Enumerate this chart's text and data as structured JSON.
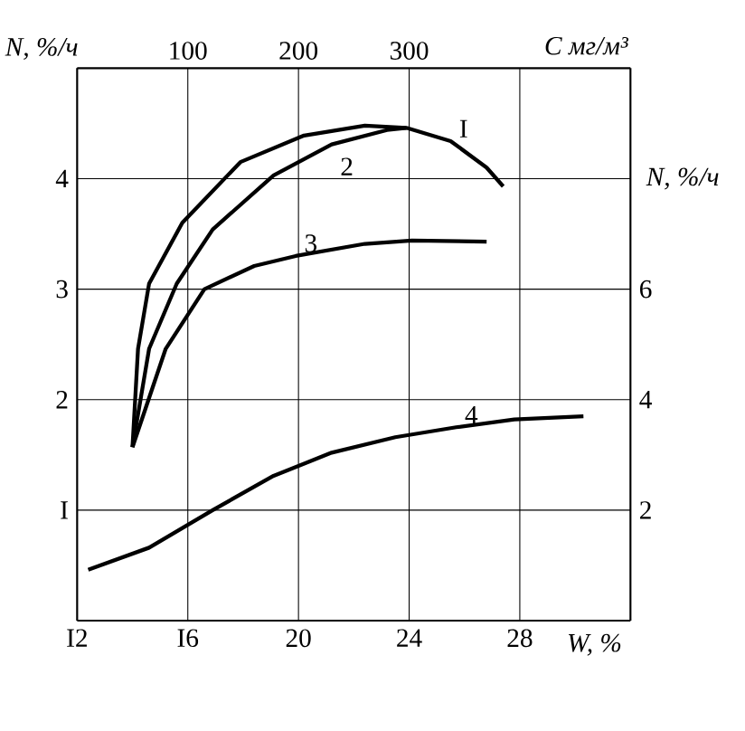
{
  "chart_data": {
    "type": "line",
    "xlabel": "W, %",
    "ylabel": "N, %/ч",
    "y2label": "N, %/ч",
    "x2label": "C мг/м³",
    "xlim": [
      12,
      32
    ],
    "xticks": [
      {
        "value": 12,
        "label": "I2"
      },
      {
        "value": 16,
        "label": "I6"
      },
      20,
      24,
      28
    ],
    "ylim": [
      0,
      5
    ],
    "yticks": [
      {
        "value": 1,
        "label": "I"
      },
      2,
      3,
      4
    ],
    "y2lim": [
      0,
      10
    ],
    "y2ticks": [
      2,
      4,
      6
    ],
    "x2lim": [
      0,
      500
    ],
    "x2ticks": [
      100,
      200,
      300
    ],
    "grid": true,
    "marker": "none",
    "line_style": "solid",
    "series": [
      {
        "name": "I",
        "color": "#000000",
        "x": [
          14.0,
          14.2,
          14.6,
          15.8,
          17.9,
          20.2,
          22.4,
          23.9,
          25.5,
          26.8,
          27.4
        ],
        "values": [
          1.57,
          2.46,
          3.05,
          3.6,
          4.15,
          4.39,
          4.48,
          4.46,
          4.34,
          4.1,
          3.93
        ]
      },
      {
        "name": "2",
        "color": "#000000",
        "x": [
          14.0,
          14.6,
          15.6,
          16.9,
          19.1,
          21.2,
          23.2,
          23.9
        ],
        "values": [
          1.57,
          2.46,
          3.05,
          3.54,
          4.03,
          4.31,
          4.44,
          4.46
        ]
      },
      {
        "name": "3",
        "color": "#000000",
        "x": [
          14.0,
          15.2,
          16.6,
          18.4,
          19.9,
          22.4,
          24.1,
          26.8
        ],
        "values": [
          1.57,
          2.46,
          3.0,
          3.21,
          3.3,
          3.41,
          3.44,
          3.43
        ]
      },
      {
        "name": "4",
        "color": "#000000",
        "x": [
          12.4,
          14.6,
          16.9,
          19.1,
          21.2,
          23.5,
          25.7,
          27.8,
          30.3
        ],
        "values": [
          0.46,
          0.66,
          1.0,
          1.31,
          1.52,
          1.66,
          1.75,
          1.82,
          1.85
        ]
      }
    ]
  }
}
